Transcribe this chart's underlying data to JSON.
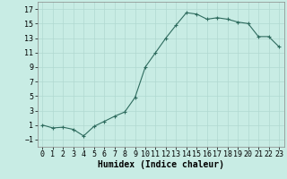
{
  "x": [
    0,
    1,
    2,
    3,
    4,
    5,
    6,
    7,
    8,
    9,
    10,
    11,
    12,
    13,
    14,
    15,
    16,
    17,
    18,
    19,
    20,
    21,
    22,
    23
  ],
  "y": [
    1.0,
    0.6,
    0.7,
    0.4,
    -0.5,
    0.8,
    1.5,
    2.2,
    2.8,
    4.8,
    9.0,
    11.0,
    13.0,
    14.8,
    16.5,
    16.3,
    15.6,
    15.8,
    15.6,
    15.2,
    15.0,
    13.2,
    13.2,
    11.8
  ],
  "xlabel": "Humidex (Indice chaleur)",
  "xlim": [
    -0.5,
    23.5
  ],
  "ylim": [
    -2,
    18
  ],
  "yticks": [
    -1,
    1,
    3,
    5,
    7,
    9,
    11,
    13,
    15,
    17
  ],
  "xticks": [
    0,
    1,
    2,
    3,
    4,
    5,
    6,
    7,
    8,
    9,
    10,
    11,
    12,
    13,
    14,
    15,
    16,
    17,
    18,
    19,
    20,
    21,
    22,
    23
  ],
  "line_color": "#2e6b5e",
  "marker": "+",
  "bg_color": "#c8ece4",
  "grid_color": "#b0d8d0",
  "label_fontsize": 7,
  "tick_fontsize": 6
}
